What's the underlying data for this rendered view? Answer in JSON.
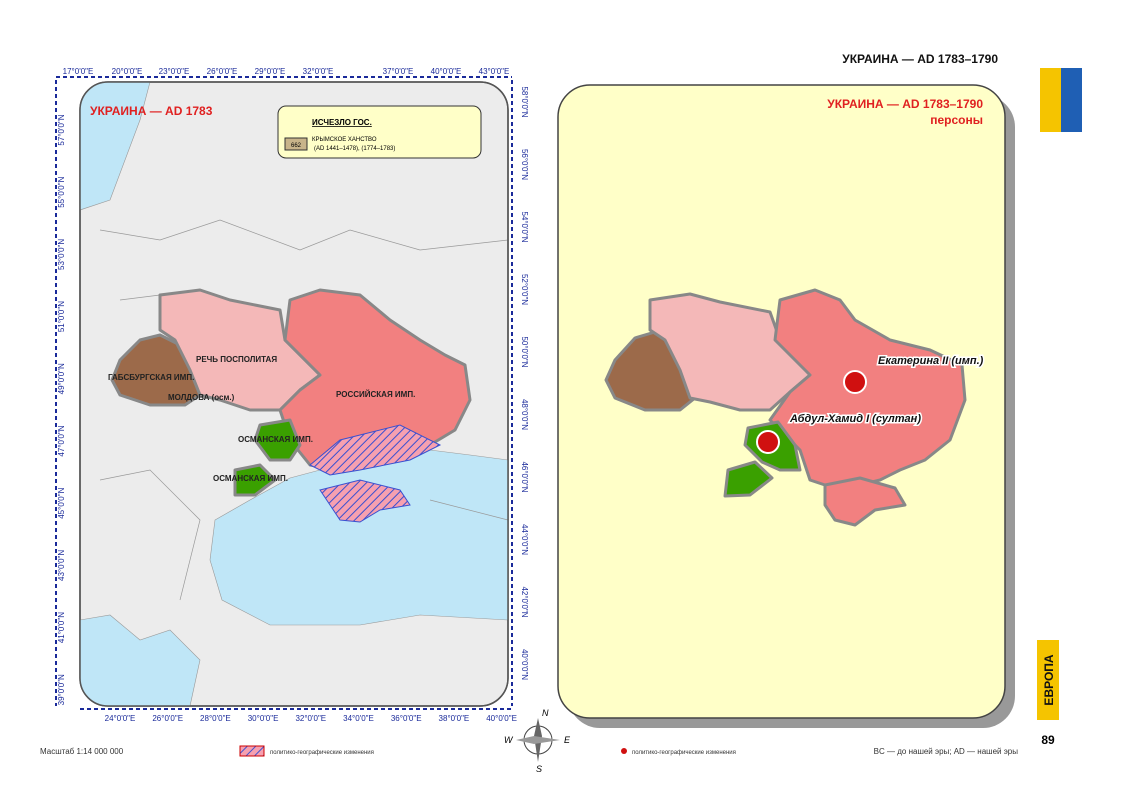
{
  "header": {
    "title": "УКРАИНА — AD 1783–1790"
  },
  "left_map": {
    "title": "УКРАИНА — AD 1783",
    "legend": {
      "heading": "ИСЧЕЗЛО ГОС.",
      "code": "662",
      "name": "КРЫМСКОЕ ХАНСТВО",
      "years": "(AD 1441–1478), (1774–1783)"
    },
    "lon_top": [
      "17°0'0\"E",
      "20°0'0\"E",
      "23°0'0\"E",
      "26°0'0\"E",
      "29°0'0\"E",
      "32°0'0\"E",
      "37°0'0\"E",
      "40°0'0\"E",
      "43°0'0\"E"
    ],
    "lon_bottom": [
      "24°0'0\"E",
      "26°0'0\"E",
      "28°0'0\"E",
      "30°0'0\"E",
      "32°0'0\"E",
      "34°0'0\"E",
      "36°0'0\"E",
      "38°0'0\"E",
      "40°0'0\"E"
    ],
    "lat_left": [
      "57°0'0\"N",
      "55°0'0\"N",
      "53°0'0\"N",
      "51°0'0\"N",
      "49°0'0\"N",
      "47°0'0\"N",
      "45°0'0\"N",
      "43°0'0\"N",
      "41°0'0\"N",
      "39°0'0\"N"
    ],
    "lat_right": [
      "58°0'0\"N",
      "56°0'0\"N",
      "54°0'0\"N",
      "52°0'0\"N",
      "50°0'0\"N",
      "48°0'0\"N",
      "46°0'0\"N",
      "44°0'0\"N",
      "42°0'0\"N",
      "40°0'0\"N"
    ],
    "regions": [
      "РЕЧЬ ПОСПОЛИТАЯ",
      "ГАБСБУРГСКАЯ ИМП.",
      "МОЛДОВА (осм.)",
      "РОССИЙСКАЯ ИМП.",
      "ОСМАНСКАЯ ИМП.",
      "ОСМАНСКАЯ ИМП."
    ]
  },
  "right_map": {
    "title": "УКРАИНА — AD 1783–1790",
    "subtitle": "персоны",
    "persons": [
      "Екатерина II (имп.)",
      "Абдул-Хамид I (султан)"
    ]
  },
  "compass": {
    "n": "N",
    "w": "W",
    "e": "E",
    "s": "S"
  },
  "footer": {
    "scale": "Масштаб 1:14 000 000",
    "changes_left": "политико-географические изменения",
    "changes_right": "политико-географические изменения",
    "era_note": "BC — до нашей эры; AD — нашей эры"
  },
  "sidebar": {
    "section": "ЕВРОПА",
    "page": "89"
  }
}
